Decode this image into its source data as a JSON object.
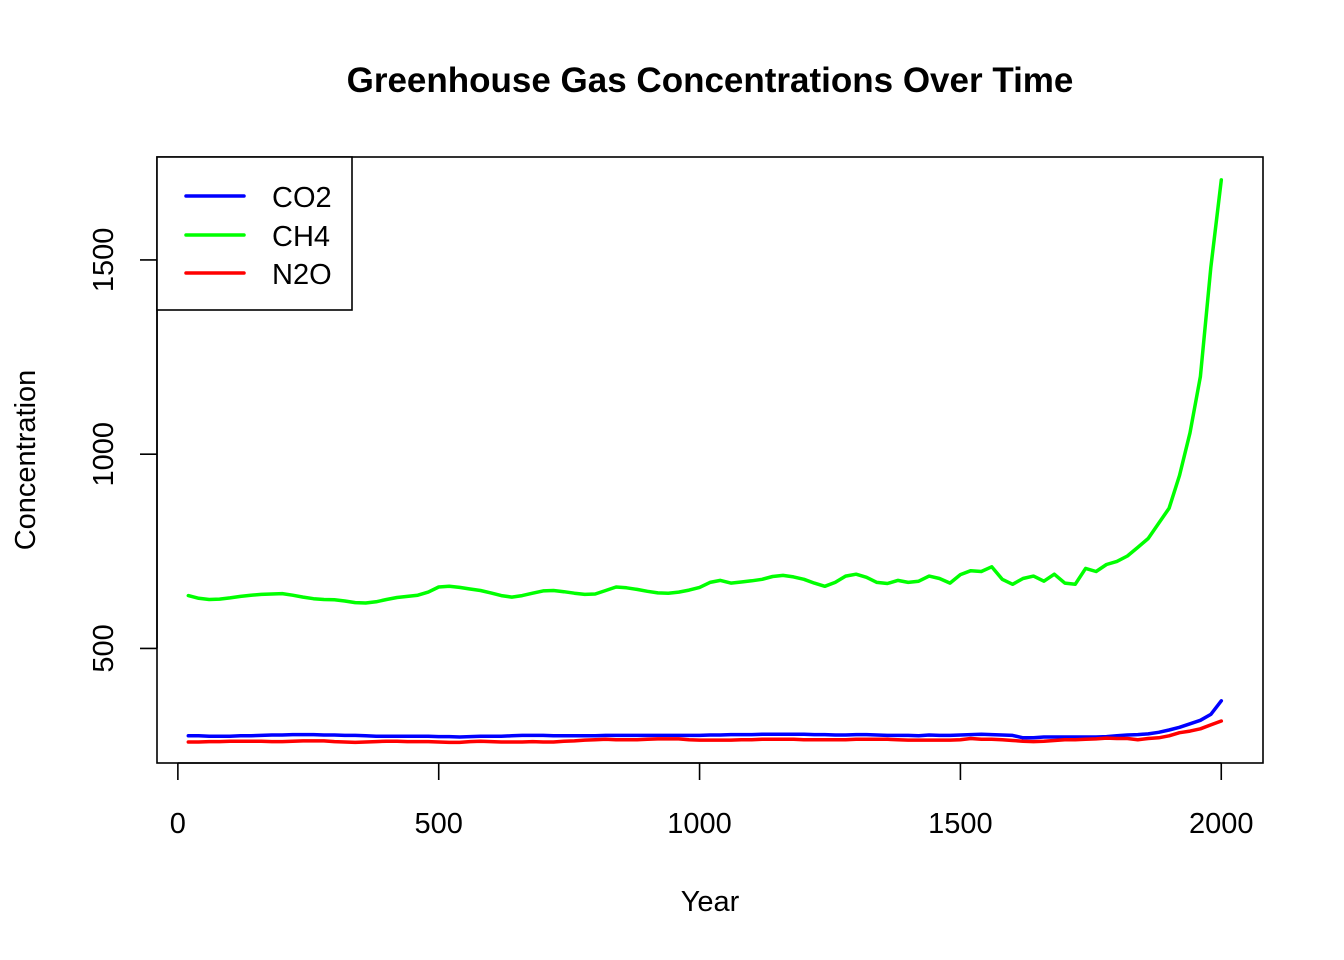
{
  "chart_data": {
    "type": "line",
    "title": "Greenhouse Gas Concentrations Over Time",
    "xlabel": "Year",
    "ylabel": "Concentration",
    "xlim": [
      -40,
      2080
    ],
    "ylim": [
      205,
      1765
    ],
    "xticks": [
      0,
      500,
      1000,
      1500,
      2000
    ],
    "yticks": [
      500,
      1000,
      1500
    ],
    "grid": false,
    "legend_position": "top-left",
    "x": [
      20,
      40,
      60,
      80,
      100,
      120,
      140,
      160,
      180,
      200,
      220,
      240,
      260,
      280,
      300,
      320,
      340,
      360,
      380,
      400,
      420,
      440,
      460,
      480,
      500,
      520,
      540,
      560,
      580,
      600,
      620,
      640,
      660,
      680,
      700,
      720,
      740,
      760,
      780,
      800,
      820,
      840,
      860,
      880,
      900,
      920,
      940,
      960,
      980,
      1000,
      1020,
      1040,
      1060,
      1080,
      1100,
      1120,
      1140,
      1160,
      1180,
      1200,
      1220,
      1240,
      1260,
      1280,
      1300,
      1320,
      1340,
      1360,
      1380,
      1400,
      1420,
      1440,
      1460,
      1480,
      1500,
      1520,
      1540,
      1560,
      1580,
      1600,
      1620,
      1640,
      1660,
      1680,
      1700,
      1720,
      1740,
      1760,
      1780,
      1800,
      1820,
      1840,
      1860,
      1880,
      1900,
      1920,
      1940,
      1960,
      1980,
      2000
    ],
    "series": [
      {
        "name": "CO2",
        "color": "#0000ff",
        "values": [
          275,
          275,
          274,
          274,
          274,
          275,
          275,
          276,
          277,
          277,
          278,
          278,
          278,
          277,
          277,
          276,
          276,
          275,
          274,
          274,
          274,
          274,
          274,
          274,
          273,
          273,
          272,
          273,
          274,
          274,
          274,
          275,
          276,
          276,
          276,
          275,
          275,
          275,
          275,
          275,
          276,
          276,
          276,
          276,
          276,
          276,
          276,
          276,
          276,
          276,
          277,
          277,
          278,
          278,
          278,
          279,
          279,
          279,
          279,
          279,
          278,
          278,
          277,
          277,
          278,
          278,
          277,
          276,
          276,
          276,
          275,
          277,
          276,
          276,
          277,
          278,
          279,
          278,
          277,
          276,
          270,
          270,
          272,
          272,
          272,
          272,
          272,
          272,
          273,
          275,
          277,
          278,
          280,
          284,
          290,
          297,
          306,
          315,
          330,
          365
        ]
      },
      {
        "name": "CH4",
        "color": "#00ff00",
        "values": [
          636,
          629,
          626,
          627,
          630,
          634,
          637,
          639,
          640,
          641,
          637,
          632,
          628,
          626,
          625,
          622,
          618,
          617,
          620,
          626,
          631,
          634,
          637,
          645,
          658,
          660,
          657,
          653,
          649,
          643,
          636,
          632,
          636,
          642,
          648,
          649,
          646,
          642,
          639,
          640,
          649,
          658,
          656,
          652,
          647,
          643,
          642,
          645,
          650,
          657,
          670,
          675,
          668,
          671,
          674,
          678,
          685,
          688,
          684,
          678,
          668,
          660,
          670,
          686,
          691,
          683,
          670,
          667,
          675,
          670,
          673,
          686,
          680,
          668,
          690,
          700,
          698,
          710,
          678,
          665,
          680,
          686,
          673,
          691,
          668,
          665,
          706,
          698,
          716,
          724,
          738,
          760,
          783,
          822,
          861,
          945,
          1055,
          1200,
          1480,
          1706
        ]
      },
      {
        "name": "N2O",
        "color": "#ff0000",
        "values": [
          259,
          259,
          260,
          260,
          261,
          261,
          261,
          261,
          260,
          260,
          261,
          262,
          262,
          262,
          260,
          259,
          258,
          259,
          260,
          261,
          261,
          260,
          260,
          260,
          259,
          258,
          258,
          260,
          261,
          260,
          259,
          259,
          259,
          260,
          259,
          259,
          261,
          262,
          264,
          265,
          266,
          265,
          265,
          265,
          266,
          267,
          267,
          267,
          265,
          264,
          264,
          264,
          264,
          265,
          265,
          266,
          266,
          266,
          266,
          265,
          265,
          265,
          265,
          265,
          266,
          266,
          266,
          266,
          265,
          264,
          264,
          264,
          264,
          264,
          265,
          268,
          266,
          266,
          265,
          263,
          261,
          260,
          261,
          263,
          265,
          265,
          266,
          267,
          269,
          268,
          268,
          265,
          268,
          270,
          275,
          283,
          287,
          293,
          303,
          313
        ]
      }
    ]
  }
}
